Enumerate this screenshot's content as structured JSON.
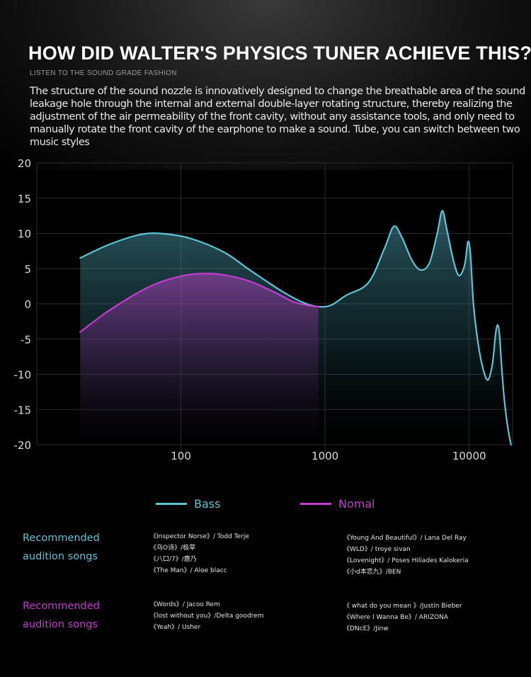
{
  "header": {
    "title": "HOW DID WALTER'S PHYSICS TUNER ACHIEVE THIS?",
    "subtitle": "LISTEN TO THE SOUND GRADE FASHION",
    "description": "The structure of the sound nozzle is innovatively designed to change the breathable area of the sound leakage hole through the internal and external double-layer rotating structure, thereby realizing the adjustment of the air permeability of the front cavity, without any assistance tools, and only need to manually rotate the front cavity of the earphone to make a sound. Tube, you can switch between two music styles"
  },
  "colors": {
    "bass": "#5fc3d6",
    "nomal": "#c23cd0",
    "grid": "#2c2c2c"
  },
  "chart_data": {
    "type": "line",
    "title": "",
    "xlabel": "",
    "ylabel": "",
    "x_scale": "log",
    "xlim": [
      10,
      20000
    ],
    "ylim": [
      -20,
      20
    ],
    "x_ticks": [
      100,
      1000,
      10000
    ],
    "x_tick_labels": [
      "100",
      "1000",
      "10000"
    ],
    "y_ticks": [
      20,
      15,
      10,
      5,
      0,
      -5,
      -10,
      -15,
      -20
    ],
    "y_tick_labels": [
      "20",
      "15",
      "10",
      "5",
      "0",
      "-5",
      "-10",
      "-15",
      "-20"
    ],
    "grid": true,
    "legend_position": "bottom-center",
    "series": [
      {
        "name": "Bass",
        "points": [
          [
            20,
            6.5
          ],
          [
            30,
            8.2
          ],
          [
            45,
            9.5
          ],
          [
            60,
            10
          ],
          [
            80,
            9.9
          ],
          [
            120,
            9.2
          ],
          [
            200,
            7.3
          ],
          [
            300,
            4.8
          ],
          [
            500,
            1.8
          ],
          [
            700,
            0.2
          ],
          [
            900,
            -0.4
          ],
          [
            1100,
            -0.2
          ],
          [
            1400,
            1.2
          ],
          [
            2000,
            3
          ],
          [
            2600,
            8
          ],
          [
            3000,
            11
          ],
          [
            3400,
            9.5
          ],
          [
            4000,
            6.2
          ],
          [
            4600,
            4.8
          ],
          [
            5300,
            5.8
          ],
          [
            6000,
            10
          ],
          [
            6500,
            13.2
          ],
          [
            7000,
            10.5
          ],
          [
            7800,
            6
          ],
          [
            8500,
            4
          ],
          [
            9300,
            5.5
          ],
          [
            9800,
            8.8
          ],
          [
            10200,
            7
          ],
          [
            10700,
            0
          ],
          [
            11500,
            -5.5
          ],
          [
            12500,
            -9.3
          ],
          [
            13500,
            -10.8
          ],
          [
            14500,
            -8.5
          ],
          [
            15200,
            -4.5
          ],
          [
            15700,
            -3
          ],
          [
            16200,
            -4.3
          ],
          [
            16800,
            -9
          ],
          [
            17500,
            -13.5
          ],
          [
            18500,
            -17.5
          ],
          [
            19500,
            -20
          ]
        ]
      },
      {
        "name": "Nomal",
        "points": [
          [
            20,
            -4
          ],
          [
            30,
            -1.3
          ],
          [
            45,
            1
          ],
          [
            60,
            2.4
          ],
          [
            80,
            3.4
          ],
          [
            110,
            4.1
          ],
          [
            150,
            4.3
          ],
          [
            200,
            4.1
          ],
          [
            300,
            3.2
          ],
          [
            450,
            1.6
          ],
          [
            600,
            0.3
          ],
          [
            800,
            -0.3
          ],
          [
            900,
            -0.4
          ]
        ]
      }
    ]
  },
  "legend": {
    "bass_label": "Bass",
    "nomal_label": "Nomal"
  },
  "recommended": [
    {
      "label_line1": "Recommended",
      "label_line2": "audition songs",
      "col1": [
        "《Inspector Norse》/ Todd Terje",
        "《乌O诗》/极草",
        "《八口/7》/鹿乃",
        "《The Man》/ Aloe blacc"
      ],
      "col2": [
        "《Young And Beautiful》/ Lana Del Ray",
        "《WLD》/ troye sivan",
        "《Lovenight》/ Poses Hiliades Kalokeria",
        "《小d本恋九》/BEN"
      ]
    },
    {
      "label_line1": "Recommended",
      "label_line2": "audition songs",
      "col1": [
        "《Words》/ Jacoo Rem",
        "《lost without you》/Delta goodrem",
        "《Yeah》/ Usher"
      ],
      "col2": [
        "《 what do you mean 》/Justin Bieber",
        "《Where I Wanna Be》/ ARIZONA",
        "《DNcE》/Jinw"
      ]
    }
  ]
}
